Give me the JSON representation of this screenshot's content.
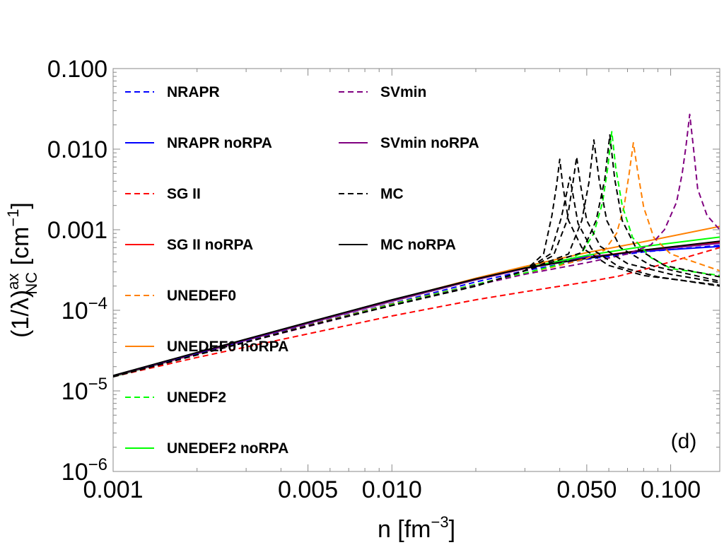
{
  "chart_data": {
    "type": "line",
    "panel_label": "(d)",
    "xscale": "log",
    "yscale": "log",
    "xlim": [
      0.001,
      0.15
    ],
    "ylim": [
      1e-06,
      0.1
    ],
    "xlabel": {
      "base": "n [fm",
      "sup": "−3",
      "end": "]"
    },
    "ylabel": {
      "base": "(1/λ)",
      "sup": "ax",
      "sub": "NC",
      "unit_base": " [cm",
      "unit_sup": "−1",
      "unit_end": "]"
    },
    "x_ticks": [
      {
        "value": 0.001,
        "label": "0.001"
      },
      {
        "value": 0.005,
        "label": "0.005"
      },
      {
        "value": 0.01,
        "label": "0.010"
      },
      {
        "value": 0.05,
        "label": "0.050"
      },
      {
        "value": 0.1,
        "label": "0.100"
      }
    ],
    "y_ticks": [
      {
        "value": 0.1,
        "label": "0.100"
      },
      {
        "value": 0.01,
        "label": "0.010"
      },
      {
        "value": 0.001,
        "label": "0.001"
      },
      {
        "value": 0.0001,
        "label": "10",
        "sup": "−4"
      },
      {
        "value": 1e-05,
        "label": "10",
        "sup": "−5"
      },
      {
        "value": 1e-06,
        "label": "10",
        "sup": "−6"
      }
    ],
    "legend": [
      {
        "label": "NRAPR",
        "color": "#0000ff",
        "dash": true
      },
      {
        "label": "NRAPR noRPA",
        "color": "#0000ff",
        "dash": false
      },
      {
        "label": "SG II",
        "color": "#ff0000",
        "dash": true
      },
      {
        "label": "SG II noRPA",
        "color": "#ff0000",
        "dash": false
      },
      {
        "label": "UNEDEF0",
        "color": "#ff8000",
        "dash": true
      },
      {
        "label": "UNEDEF0 noRPA",
        "color": "#ff8000",
        "dash": false
      },
      {
        "label": "UNEDF2",
        "color": "#00ff00",
        "dash": true
      },
      {
        "label": "UNEDEF2 noRPA",
        "color": "#00ff00",
        "dash": false
      },
      {
        "label": "SVmin",
        "color": "#800080",
        "dash": true
      },
      {
        "label": "SVmin noRPA",
        "color": "#800080",
        "dash": false
      },
      {
        "label": "MC",
        "color": "#000000",
        "dash": true
      },
      {
        "label": "MC noRPA",
        "color": "#000000",
        "dash": false
      }
    ],
    "series": [
      {
        "name": "NRAPR noRPA",
        "color": "#0000ff",
        "dash": false,
        "points": [
          [
            0.001,
            1.5e-05
          ],
          [
            0.002,
            2.9e-05
          ],
          [
            0.005,
            6.9e-05
          ],
          [
            0.01,
            0.00013
          ],
          [
            0.02,
            0.00024
          ],
          [
            0.03,
            0.00033
          ],
          [
            0.05,
            0.00046
          ],
          [
            0.08,
            0.00054
          ],
          [
            0.15,
            0.00062
          ]
        ]
      },
      {
        "name": "NRAPR",
        "color": "#0000ff",
        "dash": true,
        "points": [
          [
            0.001,
            1.5e-05
          ],
          [
            0.002,
            2.85e-05
          ],
          [
            0.005,
            6.6e-05
          ],
          [
            0.01,
            0.000122
          ],
          [
            0.02,
            0.000225
          ],
          [
            0.03,
            0.00031
          ],
          [
            0.05,
            0.00043
          ],
          [
            0.08,
            0.00053
          ],
          [
            0.15,
            0.00064
          ]
        ]
      },
      {
        "name": "SG II noRPA",
        "color": "#ff0000",
        "dash": false,
        "points": [
          [
            0.001,
            1.52e-05
          ],
          [
            0.002,
            2.9e-05
          ],
          [
            0.005,
            6.9e-05
          ],
          [
            0.01,
            0.00013
          ],
          [
            0.02,
            0.00024
          ],
          [
            0.03,
            0.00033
          ],
          [
            0.05,
            0.00045
          ],
          [
            0.08,
            0.00056
          ],
          [
            0.15,
            0.0007
          ]
        ]
      },
      {
        "name": "SG II",
        "color": "#ff0000",
        "dash": true,
        "points": [
          [
            0.001,
            1.5e-05
          ],
          [
            0.002,
            2.6e-05
          ],
          [
            0.005,
            5.1e-05
          ],
          [
            0.01,
            8.5e-05
          ],
          [
            0.02,
            0.000135
          ],
          [
            0.03,
            0.00017
          ],
          [
            0.05,
            0.000225
          ],
          [
            0.065,
            0.000265
          ],
          [
            0.08,
            0.00032
          ],
          [
            0.1,
            0.0004
          ],
          [
            0.15,
            0.0006
          ]
        ]
      },
      {
        "name": "UNEDEF0 noRPA",
        "color": "#ff8000",
        "dash": false,
        "points": [
          [
            0.001,
            1.5e-05
          ],
          [
            0.002,
            2.9e-05
          ],
          [
            0.005,
            7e-05
          ],
          [
            0.01,
            0.000133
          ],
          [
            0.02,
            0.00025
          ],
          [
            0.03,
            0.00035
          ],
          [
            0.05,
            0.00052
          ],
          [
            0.08,
            0.00071
          ],
          [
            0.15,
            0.0011
          ]
        ]
      },
      {
        "name": "UNEDEF0",
        "color": "#ff8000",
        "dash": true,
        "points": [
          [
            0.001,
            1.5e-05
          ],
          [
            0.002,
            2.8e-05
          ],
          [
            0.005,
            6.5e-05
          ],
          [
            0.01,
            0.00012
          ],
          [
            0.02,
            0.00021
          ],
          [
            0.03,
            0.00029
          ],
          [
            0.04,
            0.00036
          ],
          [
            0.05,
            0.00044
          ],
          [
            0.058,
            0.00056
          ],
          [
            0.064,
            0.0009
          ],
          [
            0.068,
            0.0019
          ],
          [
            0.071,
            0.005
          ],
          [
            0.0735,
            0.012
          ],
          [
            0.076,
            0.0055
          ],
          [
            0.08,
            0.0019
          ],
          [
            0.087,
            0.0008
          ],
          [
            0.1,
            0.0005
          ],
          [
            0.15,
            0.00031
          ]
        ]
      },
      {
        "name": "UNEDEF2 noRPA",
        "color": "#00ff00",
        "dash": false,
        "points": [
          [
            0.001,
            1.5e-05
          ],
          [
            0.002,
            2.9e-05
          ],
          [
            0.005,
            6.9e-05
          ],
          [
            0.01,
            0.00013
          ],
          [
            0.02,
            0.00024
          ],
          [
            0.03,
            0.000335
          ],
          [
            0.05,
            0.00048
          ],
          [
            0.08,
            0.00062
          ],
          [
            0.15,
            0.00081
          ]
        ]
      },
      {
        "name": "UNEDF2",
        "color": "#00ff00",
        "dash": true,
        "points": [
          [
            0.001,
            1.5e-05
          ],
          [
            0.002,
            2.8e-05
          ],
          [
            0.005,
            6.4e-05
          ],
          [
            0.01,
            0.000118
          ],
          [
            0.02,
            0.00021
          ],
          [
            0.03,
            0.00029
          ],
          [
            0.04,
            0.00037
          ],
          [
            0.048,
            0.00052
          ],
          [
            0.053,
            0.0009
          ],
          [
            0.057,
            0.0022
          ],
          [
            0.0595,
            0.006
          ],
          [
            0.0615,
            0.0165
          ],
          [
            0.0635,
            0.006
          ],
          [
            0.067,
            0.002
          ],
          [
            0.073,
            0.0008
          ],
          [
            0.085,
            0.00045
          ],
          [
            0.1,
            0.00033
          ],
          [
            0.15,
            0.00027
          ]
        ]
      },
      {
        "name": "SVmin noRPA",
        "color": "#800080",
        "dash": false,
        "points": [
          [
            0.001,
            1.52e-05
          ],
          [
            0.002,
            2.9e-05
          ],
          [
            0.005,
            6.9e-05
          ],
          [
            0.01,
            0.00013
          ],
          [
            0.02,
            0.00024
          ],
          [
            0.03,
            0.00033
          ],
          [
            0.05,
            0.00045
          ],
          [
            0.08,
            0.00055
          ],
          [
            0.15,
            0.00068
          ]
        ]
      },
      {
        "name": "SVmin",
        "color": "#800080",
        "dash": true,
        "points": [
          [
            0.001,
            1.5e-05
          ],
          [
            0.002,
            2.8e-05
          ],
          [
            0.005,
            6.3e-05
          ],
          [
            0.01,
            0.000115
          ],
          [
            0.02,
            0.000205
          ],
          [
            0.03,
            0.00028
          ],
          [
            0.05,
            0.00039
          ],
          [
            0.07,
            0.0005
          ],
          [
            0.085,
            0.00065
          ],
          [
            0.095,
            0.001
          ],
          [
            0.105,
            0.0022
          ],
          [
            0.11,
            0.005
          ],
          [
            0.1135,
            0.011
          ],
          [
            0.117,
            0.027
          ],
          [
            0.1205,
            0.011
          ],
          [
            0.125,
            0.0032
          ],
          [
            0.135,
            0.0015
          ],
          [
            0.15,
            0.001
          ]
        ]
      },
      {
        "name": "MC noRPA",
        "color": "#000000",
        "dash": false,
        "points": [
          [
            0.001,
            1.55e-05
          ],
          [
            0.002,
            3e-05
          ],
          [
            0.005,
            7.1e-05
          ],
          [
            0.01,
            0.000135
          ],
          [
            0.02,
            0.000245
          ],
          [
            0.03,
            0.000335
          ],
          [
            0.05,
            0.00044
          ],
          [
            0.08,
            0.00056
          ],
          [
            0.15,
            0.00072
          ]
        ]
      },
      {
        "name": "MC",
        "color": "#000000",
        "dash": true,
        "points": [
          [
            0.001,
            1.5e-05
          ],
          [
            0.002,
            2.8e-05
          ],
          [
            0.005,
            6.4e-05
          ],
          [
            0.01,
            0.000115
          ],
          [
            0.02,
            0.0002
          ],
          [
            0.03,
            0.00031
          ],
          [
            0.035,
            0.0005
          ],
          [
            0.0375,
            0.0015
          ],
          [
            0.039,
            0.0036
          ],
          [
            0.04,
            0.0075
          ],
          [
            0.041,
            0.0036
          ],
          [
            0.043,
            0.0013
          ],
          [
            0.048,
            0.0006
          ],
          [
            0.06,
            0.00036
          ],
          [
            0.08,
            0.00027
          ],
          [
            0.15,
            0.000205
          ]
        ]
      },
      {
        "name": "MC",
        "color": "#000000",
        "dash": true,
        "points": [
          [
            0.001,
            1.5e-05
          ],
          [
            0.002,
            2.8e-05
          ],
          [
            0.005,
            6.4e-05
          ],
          [
            0.01,
            0.000115
          ],
          [
            0.02,
            0.0002
          ],
          [
            0.03,
            0.00031
          ],
          [
            0.037,
            0.0005
          ],
          [
            0.0405,
            0.0014
          ],
          [
            0.0425,
            0.003
          ],
          [
            0.0435,
            0.0045
          ],
          [
            0.0445,
            0.0029
          ],
          [
            0.0465,
            0.0012
          ],
          [
            0.052,
            0.00058
          ],
          [
            0.065,
            0.00035
          ],
          [
            0.09,
            0.00026
          ],
          [
            0.15,
            0.0002
          ]
        ]
      },
      {
        "name": "MC",
        "color": "#000000",
        "dash": true,
        "points": [
          [
            0.001,
            1.5e-05
          ],
          [
            0.002,
            2.8e-05
          ],
          [
            0.005,
            6.4e-05
          ],
          [
            0.01,
            0.000115
          ],
          [
            0.02,
            0.0002
          ],
          [
            0.03,
            0.00031
          ],
          [
            0.038,
            0.00048
          ],
          [
            0.0425,
            0.0013
          ],
          [
            0.0445,
            0.0036
          ],
          [
            0.046,
            0.008
          ],
          [
            0.0475,
            0.0036
          ],
          [
            0.05,
            0.0013
          ],
          [
            0.056,
            0.00062
          ],
          [
            0.07,
            0.00038
          ],
          [
            0.1,
            0.00028
          ],
          [
            0.15,
            0.00022
          ]
        ]
      },
      {
        "name": "MC",
        "color": "#000000",
        "dash": true,
        "points": [
          [
            0.001,
            1.5e-05
          ],
          [
            0.002,
            2.8e-05
          ],
          [
            0.005,
            6.4e-05
          ],
          [
            0.01,
            0.000115
          ],
          [
            0.02,
            0.0002
          ],
          [
            0.03,
            0.00031
          ],
          [
            0.043,
            0.0005
          ],
          [
            0.048,
            0.0013
          ],
          [
            0.051,
            0.004
          ],
          [
            0.053,
            0.013
          ],
          [
            0.0555,
            0.004
          ],
          [
            0.059,
            0.0013
          ],
          [
            0.066,
            0.0006
          ],
          [
            0.085,
            0.00036
          ],
          [
            0.15,
            0.00023
          ]
        ]
      },
      {
        "name": "MC",
        "color": "#000000",
        "dash": true,
        "points": [
          [
            0.001,
            1.5e-05
          ],
          [
            0.002,
            2.8e-05
          ],
          [
            0.005,
            6.4e-05
          ],
          [
            0.01,
            0.000115
          ],
          [
            0.02,
            0.0002
          ],
          [
            0.03,
            0.00031
          ],
          [
            0.048,
            0.00052
          ],
          [
            0.054,
            0.0013
          ],
          [
            0.058,
            0.0042
          ],
          [
            0.0605,
            0.015
          ],
          [
            0.063,
            0.0042
          ],
          [
            0.067,
            0.0013
          ],
          [
            0.075,
            0.0006
          ],
          [
            0.095,
            0.00036
          ],
          [
            0.15,
            0.00026
          ]
        ]
      }
    ]
  }
}
